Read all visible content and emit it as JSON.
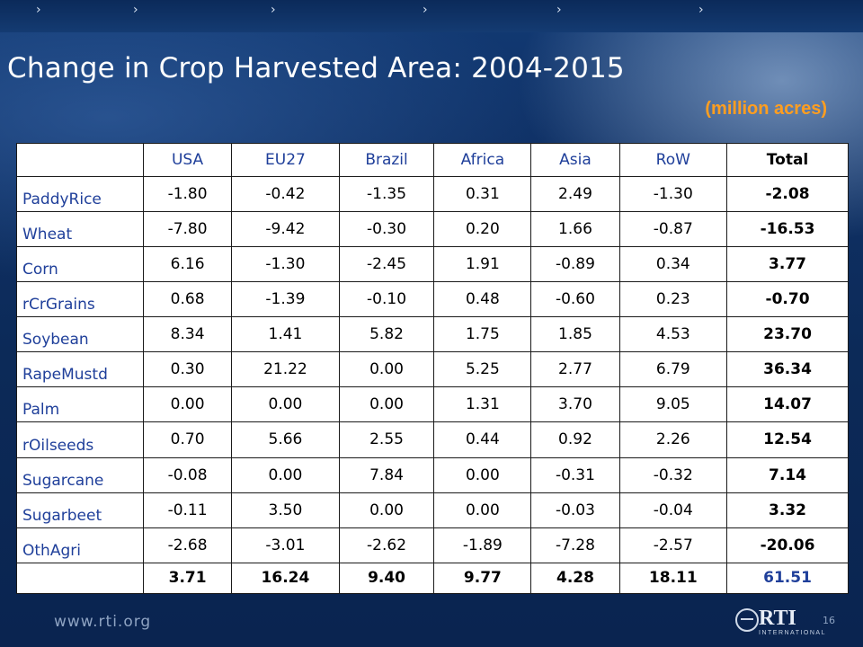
{
  "slide": {
    "title": "Change in Crop Harvested Area: 2004-2015",
    "subtitle": "(million acres)",
    "page_number": "16",
    "footer_url": "www.rti.org",
    "logo": {
      "text": "RTI",
      "subtext": "INTERNATIONAL"
    },
    "nav_chevrons": [
      "›",
      "›",
      "›",
      "›",
      "›",
      "›",
      "›",
      "›"
    ]
  },
  "table": {
    "columns": [
      "",
      "USA",
      "EU27",
      "Brazil",
      "Africa",
      "Asia",
      "RoW",
      "Total"
    ],
    "rows": [
      [
        "PaddyRice",
        "-1.80",
        "-0.42",
        "-1.35",
        "0.31",
        "2.49",
        "-1.30",
        "-2.08"
      ],
      [
        "Wheat",
        "-7.80",
        "-9.42",
        "-0.30",
        "0.20",
        "1.66",
        "-0.87",
        "-16.53"
      ],
      [
        "Corn",
        "6.16",
        "-1.30",
        "-2.45",
        "1.91",
        "-0.89",
        "0.34",
        "3.77"
      ],
      [
        "rCrGrains",
        "0.68",
        "-1.39",
        "-0.10",
        "0.48",
        "-0.60",
        "0.23",
        "-0.70"
      ],
      [
        "Soybean",
        "8.34",
        "1.41",
        "5.82",
        "1.75",
        "1.85",
        "4.53",
        "23.70"
      ],
      [
        "RapeMustd",
        "0.30",
        "21.22",
        "0.00",
        "5.25",
        "2.77",
        "6.79",
        "36.34"
      ],
      [
        "Palm",
        "0.00",
        "0.00",
        "0.00",
        "1.31",
        "3.70",
        "9.05",
        "14.07"
      ],
      [
        "rOilseeds",
        "0.70",
        "5.66",
        "2.55",
        "0.44",
        "0.92",
        "2.26",
        "12.54"
      ],
      [
        "Sugarcane",
        "-0.08",
        "0.00",
        "7.84",
        "0.00",
        "-0.31",
        "-0.32",
        "7.14"
      ],
      [
        "Sugarbeet",
        "-0.11",
        "3.50",
        "0.00",
        "0.00",
        "-0.03",
        "-0.04",
        "3.32"
      ],
      [
        "OthAgri",
        "-2.68",
        "-3.01",
        "-2.62",
        "-1.89",
        "-7.28",
        "-2.57",
        "-20.06"
      ]
    ],
    "totals_row": [
      "",
      "3.71",
      "16.24",
      "9.40",
      "9.77",
      "4.28",
      "18.11",
      "61.51"
    ]
  },
  "colors": {
    "title": "#ffffff",
    "subtitle": "#ff9e20",
    "row_label": "#1f3f9a",
    "grand_total": "#1f3f9a"
  }
}
